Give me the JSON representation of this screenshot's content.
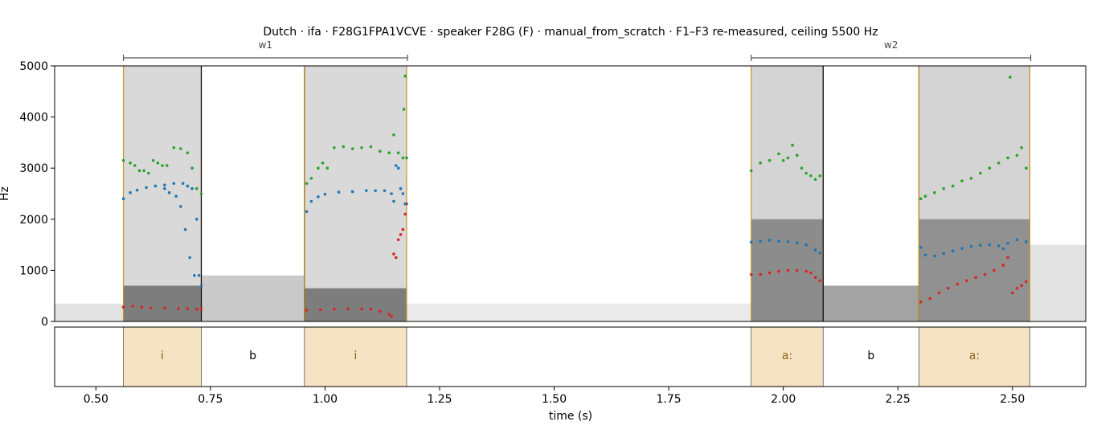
{
  "chart_data": {
    "type": "scatter",
    "title": "Dutch · ifa · F28G1FPA1VCVE · speaker F28G (F) · manual_from_scratch · F1–F3 re-measured, ceiling 5500 Hz",
    "xlabel": "time (s)",
    "ylabel": "Hz",
    "xlim": [
      0.41,
      2.66
    ],
    "ylim": [
      0,
      5000
    ],
    "xticks": [
      "0.50",
      "0.75",
      "1.00",
      "1.25",
      "1.50",
      "1.75",
      "2.00",
      "2.25",
      "2.50"
    ],
    "yticks": [
      "0",
      "1000",
      "2000",
      "3000",
      "4000",
      "5000"
    ],
    "words": [
      {
        "label": "w1",
        "start": 0.56,
        "end": 1.18
      },
      {
        "label": "w2",
        "start": 1.93,
        "end": 2.54
      }
    ],
    "segments": [
      {
        "label": "i",
        "start": 0.56,
        "end": 0.73,
        "vowel": true
      },
      {
        "label": "b",
        "start": 0.73,
        "end": 0.955,
        "vowel": false
      },
      {
        "label": "i",
        "start": 0.955,
        "end": 1.178,
        "vowel": true
      },
      {
        "label": "a:",
        "start": 1.93,
        "end": 2.087,
        "vowel": true
      },
      {
        "label": "b",
        "start": 2.087,
        "end": 2.296,
        "vowel": false
      },
      {
        "label": "a:",
        "start": 2.296,
        "end": 2.538,
        "vowel": true
      }
    ],
    "series": [
      {
        "key": "F1",
        "color": "#d62728",
        "points": [
          [
            0.56,
            280
          ],
          [
            0.58,
            300
          ],
          [
            0.6,
            280
          ],
          [
            0.62,
            260
          ],
          [
            0.65,
            260
          ],
          [
            0.68,
            250
          ],
          [
            0.7,
            250
          ],
          [
            0.72,
            240
          ],
          [
            0.73,
            240
          ],
          [
            0.96,
            220
          ],
          [
            0.99,
            230
          ],
          [
            1.02,
            240
          ],
          [
            1.05,
            250
          ],
          [
            1.08,
            240
          ],
          [
            1.1,
            240
          ],
          [
            1.12,
            200
          ],
          [
            1.14,
            140
          ],
          [
            1.145,
            100
          ],
          [
            1.15,
            1320
          ],
          [
            1.155,
            1250
          ],
          [
            1.16,
            1600
          ],
          [
            1.165,
            1700
          ],
          [
            1.17,
            1800
          ],
          [
            1.175,
            2100
          ],
          [
            1.178,
            2300
          ],
          [
            1.93,
            920
          ],
          [
            1.95,
            920
          ],
          [
            1.97,
            950
          ],
          [
            1.99,
            980
          ],
          [
            2.01,
            1000
          ],
          [
            2.03,
            1000
          ],
          [
            2.05,
            980
          ],
          [
            2.06,
            950
          ],
          [
            2.07,
            860
          ],
          [
            2.08,
            800
          ],
          [
            2.3,
            380
          ],
          [
            2.32,
            450
          ],
          [
            2.34,
            560
          ],
          [
            2.36,
            650
          ],
          [
            2.38,
            730
          ],
          [
            2.4,
            800
          ],
          [
            2.42,
            860
          ],
          [
            2.44,
            920
          ],
          [
            2.46,
            1000
          ],
          [
            2.48,
            1100
          ],
          [
            2.49,
            1250
          ],
          [
            2.5,
            560
          ],
          [
            2.51,
            650
          ],
          [
            2.52,
            700
          ],
          [
            2.53,
            780
          ]
        ]
      },
      {
        "key": "F2",
        "color": "#1f77b4",
        "points": [
          [
            0.56,
            2400
          ],
          [
            0.575,
            2520
          ],
          [
            0.59,
            2570
          ],
          [
            0.61,
            2620
          ],
          [
            0.63,
            2650
          ],
          [
            0.65,
            2670
          ],
          [
            0.67,
            2700
          ],
          [
            0.69,
            2700
          ],
          [
            0.7,
            2650
          ],
          [
            0.71,
            2600
          ],
          [
            0.72,
            2000
          ],
          [
            0.725,
            900
          ],
          [
            0.73,
            700
          ],
          [
            0.65,
            2600
          ],
          [
            0.66,
            2520
          ],
          [
            0.675,
            2450
          ],
          [
            0.685,
            2250
          ],
          [
            0.695,
            1800
          ],
          [
            0.705,
            1250
          ],
          [
            0.715,
            900
          ],
          [
            0.96,
            2150
          ],
          [
            0.97,
            2350
          ],
          [
            0.985,
            2440
          ],
          [
            1.0,
            2490
          ],
          [
            1.03,
            2530
          ],
          [
            1.06,
            2540
          ],
          [
            1.09,
            2560
          ],
          [
            1.11,
            2560
          ],
          [
            1.13,
            2560
          ],
          [
            1.145,
            2500
          ],
          [
            1.15,
            2350
          ],
          [
            1.155,
            3050
          ],
          [
            1.16,
            3000
          ],
          [
            1.165,
            2600
          ],
          [
            1.17,
            2500
          ],
          [
            1.175,
            2300
          ],
          [
            1.93,
            1550
          ],
          [
            1.95,
            1570
          ],
          [
            1.97,
            1590
          ],
          [
            1.99,
            1570
          ],
          [
            2.01,
            1560
          ],
          [
            2.03,
            1540
          ],
          [
            2.05,
            1500
          ],
          [
            2.07,
            1400
          ],
          [
            2.08,
            1340
          ],
          [
            2.3,
            1450
          ],
          [
            2.31,
            1300
          ],
          [
            2.33,
            1280
          ],
          [
            2.35,
            1330
          ],
          [
            2.37,
            1380
          ],
          [
            2.39,
            1430
          ],
          [
            2.41,
            1470
          ],
          [
            2.43,
            1490
          ],
          [
            2.45,
            1500
          ],
          [
            2.47,
            1480
          ],
          [
            2.48,
            1420
          ],
          [
            2.49,
            1530
          ],
          [
            2.51,
            1600
          ],
          [
            2.53,
            1560
          ]
        ]
      },
      {
        "key": "F3",
        "color": "#2ca02c",
        "points": [
          [
            0.56,
            3150
          ],
          [
            0.575,
            3100
          ],
          [
            0.585,
            3050
          ],
          [
            0.595,
            2950
          ],
          [
            0.605,
            2950
          ],
          [
            0.615,
            2900
          ],
          [
            0.625,
            3150
          ],
          [
            0.635,
            3100
          ],
          [
            0.645,
            3050
          ],
          [
            0.655,
            3050
          ],
          [
            0.67,
            3400
          ],
          [
            0.685,
            3380
          ],
          [
            0.7,
            3300
          ],
          [
            0.71,
            3000
          ],
          [
            0.72,
            2600
          ],
          [
            0.73,
            2500
          ],
          [
            0.96,
            2700
          ],
          [
            0.97,
            2800
          ],
          [
            0.985,
            3000
          ],
          [
            0.995,
            3100
          ],
          [
            1.005,
            3000
          ],
          [
            1.02,
            3400
          ],
          [
            1.04,
            3420
          ],
          [
            1.06,
            3380
          ],
          [
            1.08,
            3400
          ],
          [
            1.1,
            3420
          ],
          [
            1.12,
            3330
          ],
          [
            1.14,
            3300
          ],
          [
            1.15,
            3650
          ],
          [
            1.16,
            3300
          ],
          [
            1.17,
            3200
          ],
          [
            1.178,
            3200
          ],
          [
            1.175,
            4800
          ],
          [
            1.172,
            4150
          ],
          [
            1.93,
            2950
          ],
          [
            1.95,
            3100
          ],
          [
            1.97,
            3150
          ],
          [
            1.99,
            3280
          ],
          [
            2.0,
            3150
          ],
          [
            2.01,
            3200
          ],
          [
            2.02,
            3450
          ],
          [
            2.03,
            3250
          ],
          [
            2.04,
            3000
          ],
          [
            2.05,
            2900
          ],
          [
            2.06,
            2850
          ],
          [
            2.07,
            2780
          ],
          [
            2.08,
            2850
          ],
          [
            2.3,
            2400
          ],
          [
            2.31,
            2450
          ],
          [
            2.33,
            2520
          ],
          [
            2.35,
            2600
          ],
          [
            2.37,
            2650
          ],
          [
            2.39,
            2750
          ],
          [
            2.41,
            2800
          ],
          [
            2.43,
            2900
          ],
          [
            2.45,
            3000
          ],
          [
            2.47,
            3100
          ],
          [
            2.49,
            3200
          ],
          [
            2.51,
            3250
          ],
          [
            2.52,
            3400
          ],
          [
            2.53,
            3000
          ],
          [
            2.495,
            4780
          ]
        ]
      }
    ]
  }
}
